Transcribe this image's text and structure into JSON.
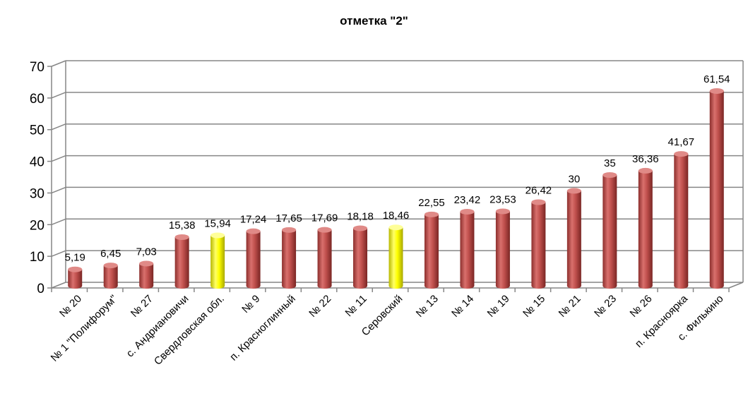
{
  "chart_data": {
    "type": "bar",
    "title": "отметка \"2\"",
    "xlabel": "",
    "ylabel": "",
    "ylim": [
      0,
      70
    ],
    "yticks": [
      "0",
      "10",
      "20",
      "30",
      "40",
      "50",
      "60",
      "70"
    ],
    "grid": true,
    "legend": "none",
    "colors": {
      "default": "#c0504d",
      "highlight": "#ffff00"
    },
    "categories": [
      "№ 20",
      "№ 1 \"Полифорум\"",
      "№ 27",
      "с. Андриановичи",
      "Свердловская обл.",
      "№ 9",
      "п. Красноглинный",
      "№ 22",
      "№ 11",
      "Серовский",
      "№ 13",
      "№ 14",
      "№ 19",
      "№ 15",
      "№ 21",
      "№ 23",
      "№ 26",
      "п. Красноярка",
      "с. Филькино"
    ],
    "values": [
      5.19,
      6.45,
      7.03,
      15.38,
      15.94,
      17.24,
      17.65,
      17.69,
      18.18,
      18.46,
      22.55,
      23.42,
      23.53,
      26.42,
      30,
      35,
      36.36,
      41.67,
      61.54
    ],
    "value_labels": [
      "5,19",
      "6,45",
      "7,03",
      "15,38",
      "15,94",
      "17,24",
      "17,65",
      "17,69",
      "18,18",
      "18,46",
      "22,55",
      "23,42",
      "23,53",
      "26,42",
      "30",
      "35",
      "36,36",
      "41,67",
      "61,54"
    ],
    "highlighted": [
      "Свердловская обл.",
      "Серовский"
    ]
  }
}
